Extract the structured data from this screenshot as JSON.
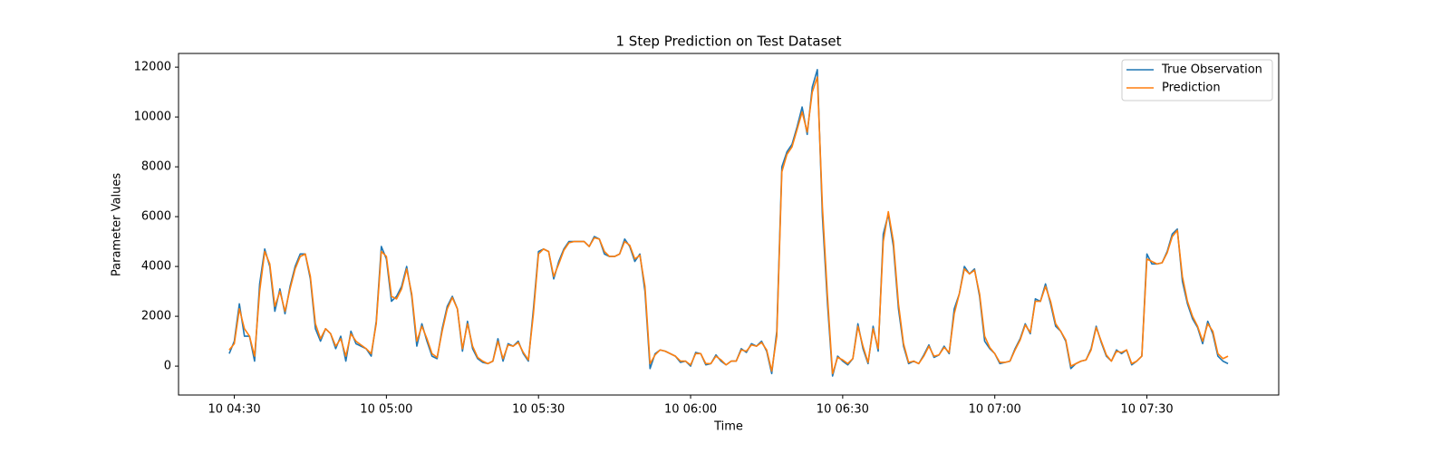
{
  "chart_data": {
    "type": "line",
    "title": "1 Step Prediction on Test Dataset",
    "xlabel": "Time",
    "ylabel": "Parameter Values",
    "legend": "upper right",
    "grid": false,
    "xlim": [
      "10 04:19",
      "10 07:56"
    ],
    "xticks": [
      "10 04:30",
      "10 05:00",
      "10 05:30",
      "10 06:00",
      "10 06:30",
      "10 07:00",
      "10 07:30"
    ],
    "ylim": [
      -1160,
      12550
    ],
    "yticks": [
      0,
      2000,
      4000,
      6000,
      8000,
      10000,
      12000
    ],
    "x": [
      "10 04:29",
      "10 04:30",
      "10 04:31",
      "10 04:32",
      "10 04:33",
      "10 04:34",
      "10 04:35",
      "10 04:36",
      "10 04:37",
      "10 04:38",
      "10 04:39",
      "10 04:40",
      "10 04:41",
      "10 04:42",
      "10 04:43",
      "10 04:44",
      "10 04:45",
      "10 04:46",
      "10 04:47",
      "10 04:48",
      "10 04:49",
      "10 04:50",
      "10 04:51",
      "10 04:52",
      "10 04:53",
      "10 04:54",
      "10 04:55",
      "10 04:56",
      "10 04:57",
      "10 04:58",
      "10 04:59",
      "10 05:00",
      "10 05:01",
      "10 05:02",
      "10 05:03",
      "10 05:04",
      "10 05:05",
      "10 05:06",
      "10 05:07",
      "10 05:08",
      "10 05:09",
      "10 05:10",
      "10 05:11",
      "10 05:12",
      "10 05:13",
      "10 05:14",
      "10 05:15",
      "10 05:16",
      "10 05:17",
      "10 05:18",
      "10 05:19",
      "10 05:20",
      "10 05:21",
      "10 05:22",
      "10 05:23",
      "10 05:24",
      "10 05:25",
      "10 05:26",
      "10 05:27",
      "10 05:28",
      "10 05:29",
      "10 05:30",
      "10 05:31",
      "10 05:32",
      "10 05:33",
      "10 05:34",
      "10 05:35",
      "10 05:36",
      "10 05:37",
      "10 05:38",
      "10 05:39",
      "10 05:40",
      "10 05:41",
      "10 05:42",
      "10 05:43",
      "10 05:44",
      "10 05:45",
      "10 05:46",
      "10 05:47",
      "10 05:48",
      "10 05:49",
      "10 05:50",
      "10 05:51",
      "10 05:52",
      "10 05:53",
      "10 05:54",
      "10 05:55",
      "10 05:56",
      "10 05:57",
      "10 05:58",
      "10 05:59",
      "10 06:00",
      "10 06:01",
      "10 06:02",
      "10 06:03",
      "10 06:04",
      "10 06:05",
      "10 06:06",
      "10 06:07",
      "10 06:08",
      "10 06:09",
      "10 06:10",
      "10 06:11",
      "10 06:12",
      "10 06:13",
      "10 06:14",
      "10 06:15",
      "10 06:16",
      "10 06:17",
      "10 06:18",
      "10 06:19",
      "10 06:20",
      "10 06:21",
      "10 06:22",
      "10 06:23",
      "10 06:24",
      "10 06:25",
      "10 06:26",
      "10 06:27",
      "10 06:28",
      "10 06:29",
      "10 06:30",
      "10 06:31",
      "10 06:32",
      "10 06:33",
      "10 06:34",
      "10 06:35",
      "10 06:36",
      "10 06:37",
      "10 06:38",
      "10 06:39",
      "10 06:40",
      "10 06:41",
      "10 06:42",
      "10 06:43",
      "10 06:44",
      "10 06:45",
      "10 06:46",
      "10 06:47",
      "10 06:48",
      "10 06:49",
      "10 06:50",
      "10 06:51",
      "10 06:52",
      "10 06:53",
      "10 06:54",
      "10 06:55",
      "10 06:56",
      "10 06:57",
      "10 06:58",
      "10 06:59",
      "10 07:00",
      "10 07:01",
      "10 07:02",
      "10 07:03",
      "10 07:04",
      "10 07:05",
      "10 07:06",
      "10 07:07",
      "10 07:08",
      "10 07:09",
      "10 07:10",
      "10 07:11",
      "10 07:12",
      "10 07:13",
      "10 07:14",
      "10 07:15",
      "10 07:16",
      "10 07:17",
      "10 07:18",
      "10 07:19",
      "10 07:20",
      "10 07:21",
      "10 07:22",
      "10 07:23",
      "10 07:24",
      "10 07:25",
      "10 07:26",
      "10 07:27",
      "10 07:28",
      "10 07:29",
      "10 07:30",
      "10 07:31",
      "10 07:32",
      "10 07:33",
      "10 07:34",
      "10 07:35",
      "10 07:36",
      "10 07:37",
      "10 07:38",
      "10 07:39",
      "10 07:40",
      "10 07:41",
      "10 07:42",
      "10 07:43",
      "10 07:44",
      "10 07:45",
      "10 07:46"
    ],
    "series": [
      {
        "name": "True Observation",
        "color": "#1f77b4",
        "values": [
          500,
          1000,
          2500,
          1200,
          1200,
          200,
          3300,
          4700,
          4000,
          2200,
          3100,
          2100,
          3200,
          4000,
          4500,
          4500,
          3500,
          1500,
          1000,
          1500,
          1300,
          700,
          1200,
          200,
          1400,
          900,
          800,
          700,
          400,
          1800,
          4800,
          4300,
          2600,
          2800,
          3200,
          4000,
          2800,
          800,
          1700,
          1000,
          400,
          300,
          1500,
          2400,
          2800,
          2300,
          600,
          1800,
          700,
          300,
          150,
          100,
          200,
          1100,
          200,
          900,
          800,
          1000,
          500,
          200,
          2300,
          4600,
          4700,
          4600,
          3500,
          4200,
          4700,
          5000,
          5000,
          5000,
          5000,
          4800,
          5200,
          5100,
          4500,
          4400,
          4400,
          4500,
          5100,
          4800,
          4200,
          4500,
          3000,
          -100,
          500,
          650,
          600,
          500,
          400,
          150,
          200,
          0,
          550,
          500,
          50,
          100,
          450,
          200,
          50,
          200,
          200,
          700,
          550,
          900,
          800,
          1000,
          600,
          -300,
          1400,
          8000,
          8600,
          8900,
          9600,
          10400,
          9300,
          11200,
          11900,
          6000,
          2500,
          -400,
          400,
          200,
          50,
          300,
          1700,
          700,
          100,
          1600,
          600,
          5300,
          6100,
          4800,
          2300,
          800,
          100,
          200,
          100,
          450,
          850,
          350,
          450,
          800,
          500,
          2300,
          2900,
          4000,
          3700,
          3900,
          2800,
          1000,
          700,
          500,
          100,
          150,
          200,
          700,
          1100,
          1700,
          1300,
          2700,
          2600,
          3300,
          2500,
          1600,
          1400,
          1000,
          -100,
          100,
          200,
          250,
          700,
          1600,
          950,
          400,
          200,
          650,
          500,
          650,
          50,
          200,
          400,
          4500,
          4100,
          4100,
          4150,
          4600,
          5300,
          5500,
          3400,
          2500,
          1900,
          1550,
          900,
          1800,
          1300,
          400,
          200,
          100
        ]
      },
      {
        "name": "Prediction",
        "color": "#ff7f0e",
        "values": [
          650,
          900,
          2300,
          1500,
          1200,
          400,
          3000,
          4600,
          4100,
          2400,
          3000,
          2200,
          3100,
          3900,
          4400,
          4500,
          3600,
          1700,
          1100,
          1500,
          1300,
          800,
          1100,
          400,
          1300,
          1000,
          850,
          700,
          500,
          1700,
          4600,
          4400,
          2800,
          2700,
          3100,
          3900,
          2900,
          1000,
          1600,
          1100,
          500,
          350,
          1400,
          2300,
          2750,
          2300,
          700,
          1700,
          800,
          350,
          200,
          100,
          200,
          1000,
          300,
          850,
          800,
          950,
          550,
          250,
          2100,
          4500,
          4700,
          4600,
          3600,
          4100,
          4650,
          4950,
          5000,
          5000,
          5000,
          4800,
          5150,
          5100,
          4600,
          4400,
          4400,
          4500,
          5000,
          4850,
          4300,
          4450,
          3200,
          100,
          450,
          650,
          600,
          500,
          400,
          200,
          200,
          50,
          500,
          500,
          100,
          100,
          400,
          250,
          50,
          200,
          200,
          650,
          600,
          850,
          800,
          950,
          650,
          -200,
          1200,
          7800,
          8500,
          8800,
          9500,
          10200,
          9400,
          11000,
          11600,
          6400,
          2800,
          -300,
          350,
          250,
          100,
          300,
          1600,
          800,
          150,
          1500,
          700,
          5000,
          6200,
          5000,
          2500,
          900,
          150,
          200,
          100,
          400,
          800,
          400,
          450,
          750,
          550,
          2100,
          2900,
          3900,
          3700,
          3850,
          2900,
          1200,
          750,
          500,
          150,
          150,
          200,
          650,
          1050,
          1650,
          1350,
          2600,
          2600,
          3200,
          2600,
          1700,
          1400,
          1050,
          0,
          100,
          200,
          250,
          650,
          1550,
          1000,
          450,
          200,
          600,
          550,
          650,
          100,
          200,
          400,
          4300,
          4200,
          4100,
          4150,
          4550,
          5200,
          5450,
          3600,
          2600,
          2000,
          1600,
          1000,
          1700,
          1400,
          500,
          300,
          400
        ]
      }
    ]
  }
}
